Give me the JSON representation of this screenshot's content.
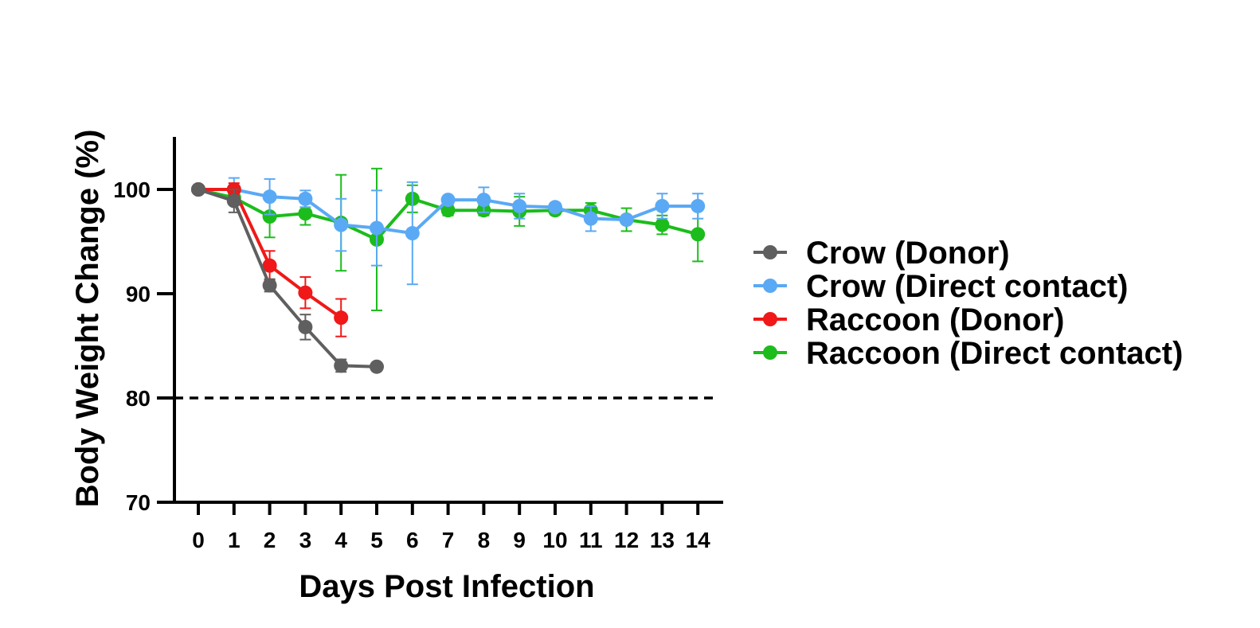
{
  "chart_data": {
    "type": "line",
    "title": "",
    "xlabel": "Days Post Infection",
    "ylabel": "Body Weight Change (%)",
    "xlim": [
      -0.7,
      14.7
    ],
    "ylim": [
      70,
      105
    ],
    "x_ticks": [
      0,
      1,
      2,
      3,
      4,
      5,
      6,
      7,
      8,
      9,
      10,
      11,
      12,
      13,
      14
    ],
    "y_ticks": [
      70,
      80,
      90,
      100
    ],
    "reference_line": {
      "y": 80,
      "style": "dashed",
      "color": "#000000"
    },
    "grid": false,
    "legend": {
      "position": "right",
      "marker": "circle-with-line"
    },
    "series": [
      {
        "name": "Raccoon (Direct contact)",
        "color": "#1CBC1C",
        "points": [
          {
            "x": 0,
            "y": 100,
            "err": 0
          },
          {
            "x": 1,
            "y": 99.2,
            "err": 0.6
          },
          {
            "x": 2,
            "y": 97.4,
            "err": 2.0
          },
          {
            "x": 3,
            "y": 97.7,
            "err": 1.1
          },
          {
            "x": 4,
            "y": 96.8,
            "err": 4.6
          },
          {
            "x": 5,
            "y": 95.2,
            "err": 6.8
          },
          {
            "x": 6,
            "y": 99.1,
            "err": 1.3
          },
          {
            "x": 7,
            "y": 98.0,
            "err": 0.5
          },
          {
            "x": 8,
            "y": 98.0,
            "err": 0.5
          },
          {
            "x": 9,
            "y": 97.9,
            "err": 1.4
          },
          {
            "x": 10,
            "y": 98.0,
            "err": 0.4
          },
          {
            "x": 11,
            "y": 98.0,
            "err": 0.7
          },
          {
            "x": 12,
            "y": 97.1,
            "err": 1.1
          },
          {
            "x": 13,
            "y": 96.6,
            "err": 0.9
          },
          {
            "x": 14,
            "y": 95.7,
            "err": 2.6
          }
        ]
      },
      {
        "name": "Crow (Direct contact)",
        "color": "#5AA9F5",
        "points": [
          {
            "x": 0,
            "y": 100,
            "err": 0
          },
          {
            "x": 1,
            "y": 100,
            "err": 1.1
          },
          {
            "x": 2,
            "y": 99.3,
            "err": 1.7
          },
          {
            "x": 3,
            "y": 99.1,
            "err": 0.8
          },
          {
            "x": 4,
            "y": 96.6,
            "err": 2.5
          },
          {
            "x": 5,
            "y": 96.3,
            "err": 3.6
          },
          {
            "x": 6,
            "y": 95.8,
            "err": 4.9
          },
          {
            "x": 7,
            "y": 99.0,
            "err": 0.3
          },
          {
            "x": 8,
            "y": 99.0,
            "err": 1.2
          },
          {
            "x": 9,
            "y": 98.4,
            "err": 1.2
          },
          {
            "x": 10,
            "y": 98.3,
            "err": 0.4
          },
          {
            "x": 11,
            "y": 97.2,
            "err": 1.2
          },
          {
            "x": 12,
            "y": 97.1,
            "err": 0.3
          },
          {
            "x": 13,
            "y": 98.4,
            "err": 1.2
          },
          {
            "x": 14,
            "y": 98.4,
            "err": 1.2
          }
        ]
      },
      {
        "name": "Raccoon (Donor)",
        "color": "#F01818",
        "points": [
          {
            "x": 0,
            "y": 100,
            "err": 0
          },
          {
            "x": 1,
            "y": 100,
            "err": 0.6
          },
          {
            "x": 2,
            "y": 92.7,
            "err": 1.4
          },
          {
            "x": 3,
            "y": 90.1,
            "err": 1.5
          },
          {
            "x": 4,
            "y": 87.7,
            "err": 1.8
          }
        ]
      },
      {
        "name": "Crow (Donor)",
        "color": "#5F5F5F",
        "points": [
          {
            "x": 0,
            "y": 100,
            "err": 0
          },
          {
            "x": 1,
            "y": 98.9,
            "err": 1.1
          },
          {
            "x": 2,
            "y": 90.8,
            "err": 0.6
          },
          {
            "x": 3,
            "y": 86.8,
            "err": 1.2
          },
          {
            "x": 4,
            "y": 83.1,
            "err": 0.6
          },
          {
            "x": 5,
            "y": 83.0,
            "err": 0
          }
        ]
      }
    ],
    "legend_order": [
      "Crow (Donor)",
      "Crow (Direct contact)",
      "Raccoon (Donor)",
      "Raccoon (Direct contact)"
    ]
  }
}
